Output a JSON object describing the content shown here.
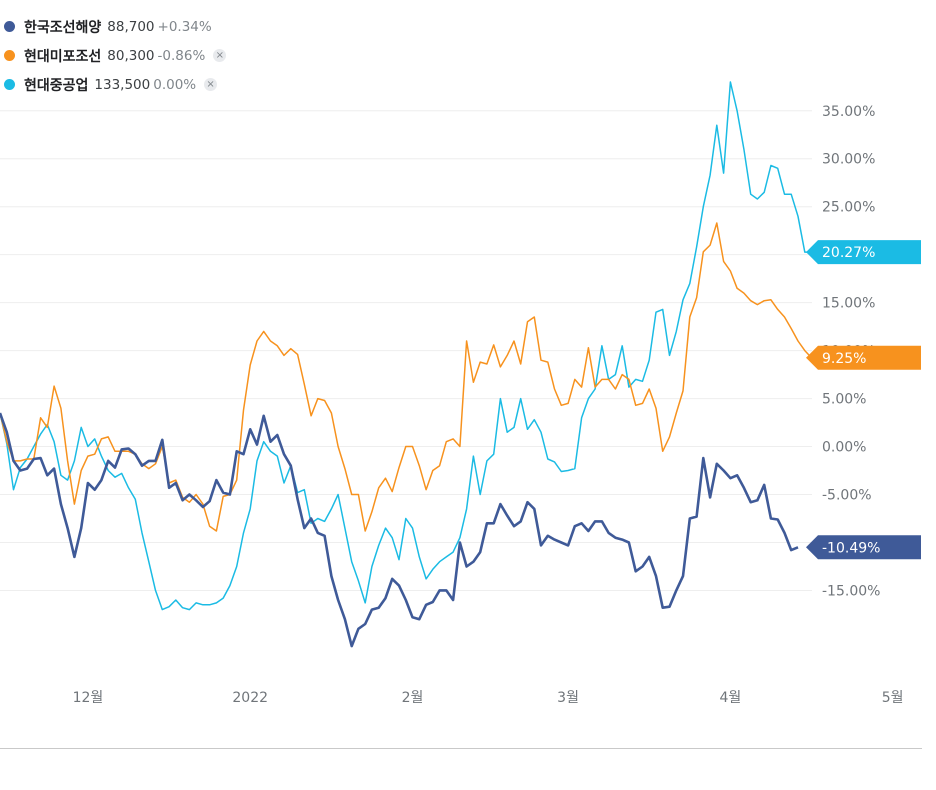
{
  "legend": [
    {
      "name": "한국조선해양",
      "price": "88,700",
      "change": "+0.34%",
      "color": "#3f5a98",
      "removable": false
    },
    {
      "name": "현대미포조선",
      "price": "80,300",
      "change": "-0.86%",
      "color": "#f7921e",
      "removable": true
    },
    {
      "name": "현대중공업",
      "price": "133,500",
      "change": "0.00%",
      "color": "#1bbbe4",
      "removable": true
    }
  ],
  "close_icon": "×",
  "chart_data": {
    "type": "line",
    "ylim": [
      -21,
      38
    ],
    "y_ticks": [
      "35.00%",
      "30.00%",
      "25.00%",
      "15.00%",
      "10.00%",
      "5.00%",
      "0.00%",
      "-5.00%",
      "-15.00%"
    ],
    "y_tick_values": [
      35,
      30,
      25,
      15,
      10,
      5,
      0,
      -5,
      -15
    ],
    "grid": true,
    "x_axis_labels": [
      {
        "label": "12월",
        "x": 13
      },
      {
        "label": "2022",
        "x": 37
      },
      {
        "label": "2월",
        "x": 61
      },
      {
        "label": "3월",
        "x": 84
      },
      {
        "label": "4월",
        "x": 108
      },
      {
        "label": "5월",
        "x": 132
      }
    ],
    "series": [
      {
        "name": "한국조선해양",
        "color": "#3f5a98",
        "end_label": "-10.49%",
        "values": [
          3.5,
          1.5,
          -1.5,
          -2.5,
          -2.3,
          -1.3,
          -1.2,
          -3.0,
          -2.3,
          -6.0,
          -8.5,
          -11.5,
          -8.5,
          -3.8,
          -4.5,
          -3.5,
          -1.5,
          -2.2,
          -0.3,
          -0.2,
          -0.8,
          -2.0,
          -1.5,
          -1.5,
          0.7,
          -4.3,
          -3.8,
          -5.6,
          -5.0,
          -5.6,
          -6.3,
          -5.7,
          -3.5,
          -4.8,
          -5.0,
          -0.5,
          -0.8,
          1.8,
          0.2,
          3.2,
          0.5,
          1.2,
          -0.8,
          -2.0,
          -5.5,
          -8.5,
          -7.5,
          -9.0,
          -9.3,
          -13.5,
          -16.0,
          -18.0,
          -20.8,
          -19.0,
          -18.5,
          -17.0,
          -16.8,
          -15.8,
          -13.8,
          -14.5,
          -16.0,
          -17.8,
          -18.0,
          -16.5,
          -16.2,
          -15.0,
          -15.0,
          -16.0,
          -10.0,
          -12.5,
          -12.0,
          -11.0,
          -8.0,
          -8.0,
          -6.0,
          -7.2,
          -8.3,
          -7.8,
          -5.8,
          -6.5,
          -10.3,
          -9.3,
          -9.7,
          -10.0,
          -10.3,
          -8.3,
          -8.0,
          -8.8,
          -7.8,
          -7.8,
          -9.0,
          -9.5,
          -9.7,
          -10.0,
          -13.0,
          -12.5,
          -11.5,
          -13.5,
          -16.8,
          -16.7,
          -15.0,
          -13.5,
          -7.5,
          -7.3,
          -1.2,
          -5.3,
          -1.8,
          -2.5,
          -3.3,
          -3.0,
          -4.3,
          -5.8,
          -5.6,
          -4.0,
          -7.5,
          -7.6,
          -9.0,
          -10.8,
          -10.5
        ]
      },
      {
        "name": "현대미포조선",
        "color": "#f7921e",
        "end_label": "9.25%",
        "values": [
          3.5,
          0.5,
          -1.5,
          -1.5,
          -1.3,
          -1.3,
          3.0,
          2.0,
          6.3,
          4.0,
          -1.5,
          -6.0,
          -2.5,
          -1.0,
          -0.8,
          0.8,
          1.0,
          -0.5,
          -0.5,
          -0.5,
          -0.8,
          -1.8,
          -2.3,
          -1.8,
          0.0,
          -3.8,
          -3.5,
          -5.3,
          -5.8,
          -5.0,
          -6.0,
          -8.3,
          -8.8,
          -5.2,
          -5.0,
          -3.5,
          3.8,
          8.5,
          11.0,
          12.0,
          11.0,
          10.5,
          9.5,
          10.2,
          9.6,
          6.5,
          3.2,
          5.0,
          4.8,
          3.5,
          0.0,
          -2.3,
          -5.0,
          -5.0,
          -8.8,
          -6.8,
          -4.3,
          -3.3,
          -4.7,
          -2.2,
          0.0,
          0.0,
          -2.0,
          -4.5,
          -2.5,
          -2.0,
          0.5,
          0.8,
          0.0,
          11.0,
          6.7,
          8.8,
          8.6,
          10.6,
          8.3,
          9.5,
          11.0,
          8.6,
          13.0,
          13.5,
          9.0,
          8.8,
          6.0,
          4.3,
          4.5,
          7.0,
          6.2,
          10.3,
          6.2,
          7.0,
          7.0,
          6.0,
          7.5,
          7.0,
          4.3,
          4.5,
          6.0,
          4.0,
          -0.5,
          1.0,
          3.5,
          5.8,
          13.5,
          15.5,
          20.3,
          21.0,
          23.3,
          19.3,
          18.3,
          16.5,
          16.0,
          15.2,
          14.8,
          15.2,
          15.3,
          14.3,
          13.5,
          12.3,
          11.0,
          10.0,
          9.25
        ]
      },
      {
        "name": "현대중공업",
        "color": "#1bbbe4",
        "end_label": "20.27%",
        "values": [
          3.5,
          0.3,
          -4.5,
          -2.2,
          -1.3,
          0.0,
          1.3,
          2.3,
          0.5,
          -3.0,
          -3.5,
          -1.5,
          2.0,
          0.0,
          0.8,
          -1.0,
          -2.5,
          -3.2,
          -2.8,
          -4.3,
          -5.5,
          -9.0,
          -12.0,
          -15.0,
          -17.0,
          -16.7,
          -16.0,
          -16.8,
          -17.0,
          -16.3,
          -16.5,
          -16.5,
          -16.3,
          -15.8,
          -14.5,
          -12.5,
          -9.0,
          -6.5,
          -1.5,
          0.5,
          -0.5,
          -1.0,
          -3.8,
          -2.0,
          -4.8,
          -4.5,
          -8.0,
          -7.5,
          -7.8,
          -6.5,
          -5.0,
          -8.5,
          -12.0,
          -14.0,
          -16.3,
          -12.5,
          -10.3,
          -8.5,
          -9.5,
          -11.8,
          -7.5,
          -8.5,
          -11.5,
          -13.8,
          -12.8,
          -12.0,
          -11.5,
          -11.0,
          -9.5,
          -6.5,
          -1.0,
          -5.0,
          -1.5,
          -0.8,
          5.0,
          1.5,
          2.0,
          5.0,
          1.8,
          2.8,
          1.5,
          -1.3,
          -1.6,
          -2.6,
          -2.5,
          -2.3,
          3.0,
          5.0,
          6.0,
          10.5,
          7.0,
          7.5,
          10.5,
          6.2,
          7.0,
          6.8,
          9.0,
          14.0,
          14.3,
          9.5,
          12.0,
          15.3,
          17.0,
          20.8,
          25.0,
          28.3,
          33.5,
          28.5,
          38.0,
          35.0,
          31.0,
          26.3,
          25.8,
          26.5,
          29.3,
          29.0,
          26.3,
          26.3,
          24.0,
          20.27,
          20.27
        ]
      }
    ]
  }
}
